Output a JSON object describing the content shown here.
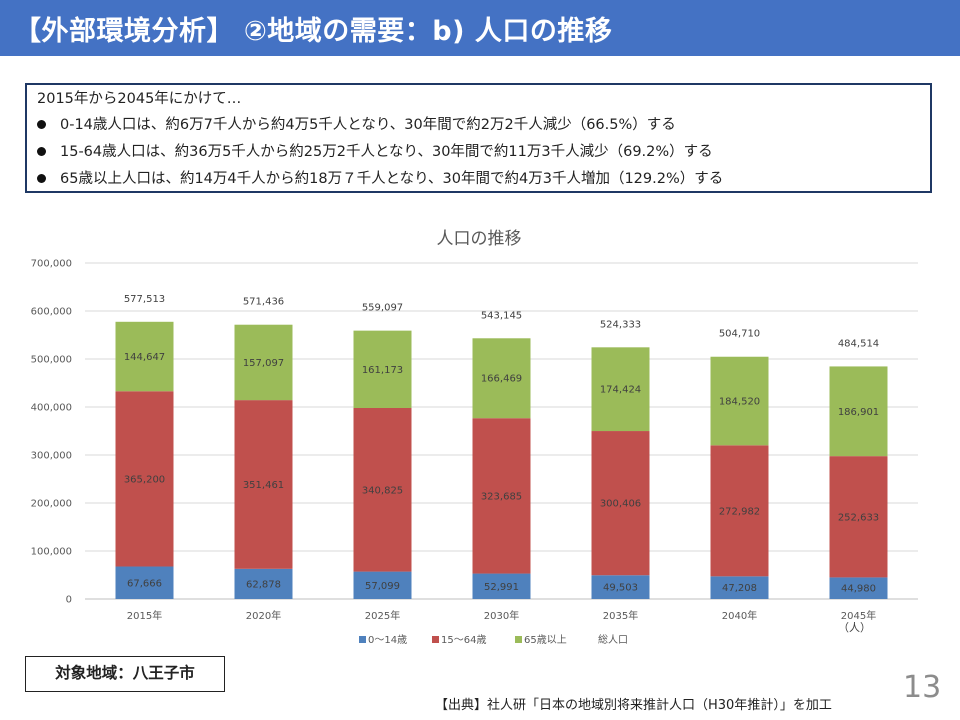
{
  "slide": {
    "title": "【外部環境分析】 ②地域の需要：b) 人口の推移",
    "page_number": "13",
    "target_area": "対象地域：八王子市",
    "source": "【出典】社人研「日本の地域別将来推計人口（H30年推計）」を加工"
  },
  "summary": {
    "intro": "2015年から2045年にかけて…",
    "bullets": [
      "0-14歳人口は、約6万7千人から約4万5千人となり、30年間で約2万2千人減少（66.5%）する",
      "15-64歳人口は、約36万5千人から約25万2千人となり、30年間で約11万3千人減少（69.2%）する",
      "65歳以上人口は、約14万4千人から約18万７千人となり、30年間で約4万3千人増加（129.2%）する"
    ]
  },
  "chart_data": {
    "type": "bar",
    "stacked": true,
    "title": "人口の推移",
    "unit_label": "（人）",
    "categories": [
      "2015年",
      "2020年",
      "2025年",
      "2030年",
      "2035年",
      "2040年",
      "2045年"
    ],
    "series": [
      {
        "name": "0〜14歳",
        "color": "#4f81bd",
        "values": [
          67666,
          62878,
          57099,
          52991,
          49503,
          47208,
          44980
        ],
        "labels": [
          "67,666",
          "62,878",
          "57,099",
          "52,991",
          "49,503",
          "47,208",
          "44,980"
        ]
      },
      {
        "name": "15〜64歳",
        "color": "#c0504d",
        "values": [
          365200,
          351461,
          340825,
          323685,
          300406,
          272982,
          252633
        ],
        "labels": [
          "365,200",
          "351,461",
          "340,825",
          "323,685",
          "300,406",
          "272,982",
          "252,633"
        ]
      },
      {
        "name": "65歳以上",
        "color": "#9bbb59",
        "values": [
          144647,
          157097,
          161173,
          166469,
          174424,
          184520,
          186901
        ],
        "labels": [
          "144,647",
          "157,097",
          "161,173",
          "166,469",
          "174,424",
          "184,520",
          "186,901"
        ]
      }
    ],
    "totals": {
      "name": "総人口",
      "values": [
        577513,
        571436,
        559097,
        543145,
        524333,
        504710,
        484514
      ],
      "labels": [
        "577,513",
        "571,436",
        "559,097",
        "543,145",
        "524,333",
        "504,710",
        "484,514"
      ]
    },
    "ylim": [
      0,
      700000
    ],
    "yticks": [
      0,
      100000,
      200000,
      300000,
      400000,
      500000,
      600000,
      700000
    ],
    "ytick_labels": [
      "0",
      "100,000",
      "200,000",
      "300,000",
      "400,000",
      "500,000",
      "600,000",
      "700,000"
    ],
    "grid": true,
    "legend_position": "bottom"
  }
}
